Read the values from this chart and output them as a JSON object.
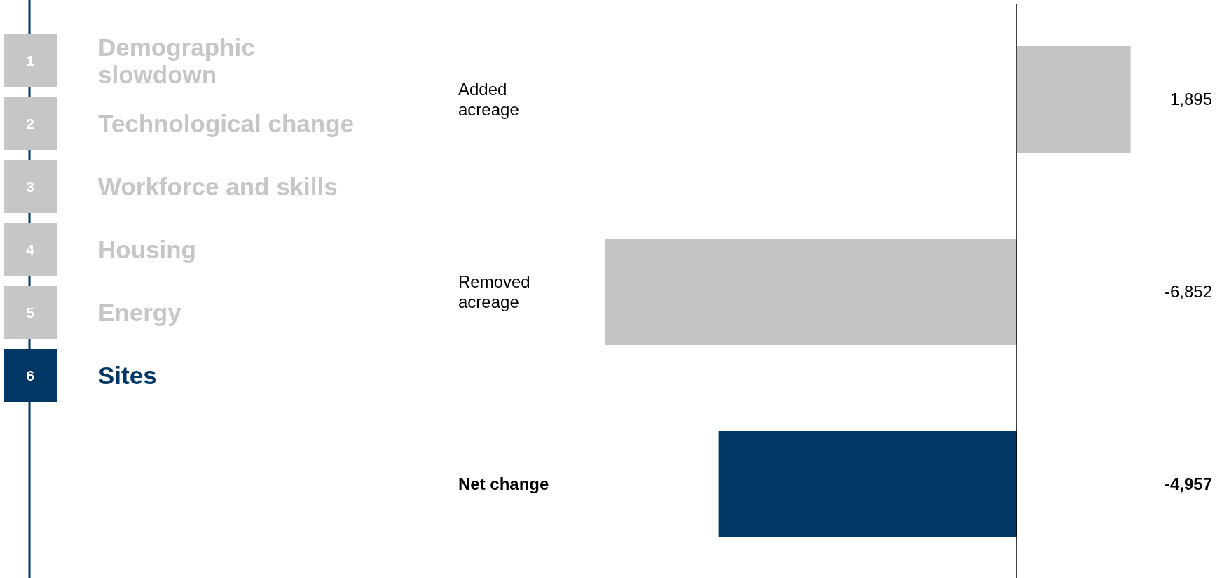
{
  "chart_data": [
    {
      "type": "other",
      "categories": [
        "Demographic slowdown",
        "Technological change",
        "Workforce and skills",
        "Housing",
        "Energy",
        "Sites"
      ],
      "values": [
        1,
        2,
        3,
        4,
        5,
        6
      ],
      "data_labels": true,
      "colors": [
        "#c6c6c6",
        "#c6c6c6",
        "#c6c6c6",
        "#c6c6c6",
        "#c6c6c6",
        "#003764"
      ]
    },
    {
      "type": "bar",
      "orientation": "horizontal",
      "categories": [
        "Added acreage",
        "Removed acreage",
        "Net change"
      ],
      "values": [
        1895,
        -6852,
        -4957
      ],
      "colors": [
        "#c4c4c4",
        "#c4c4c4",
        "#003764"
      ],
      "value_labels": [
        "1,895",
        "-6,852",
        "-4,957"
      ]
    }
  ]
}
